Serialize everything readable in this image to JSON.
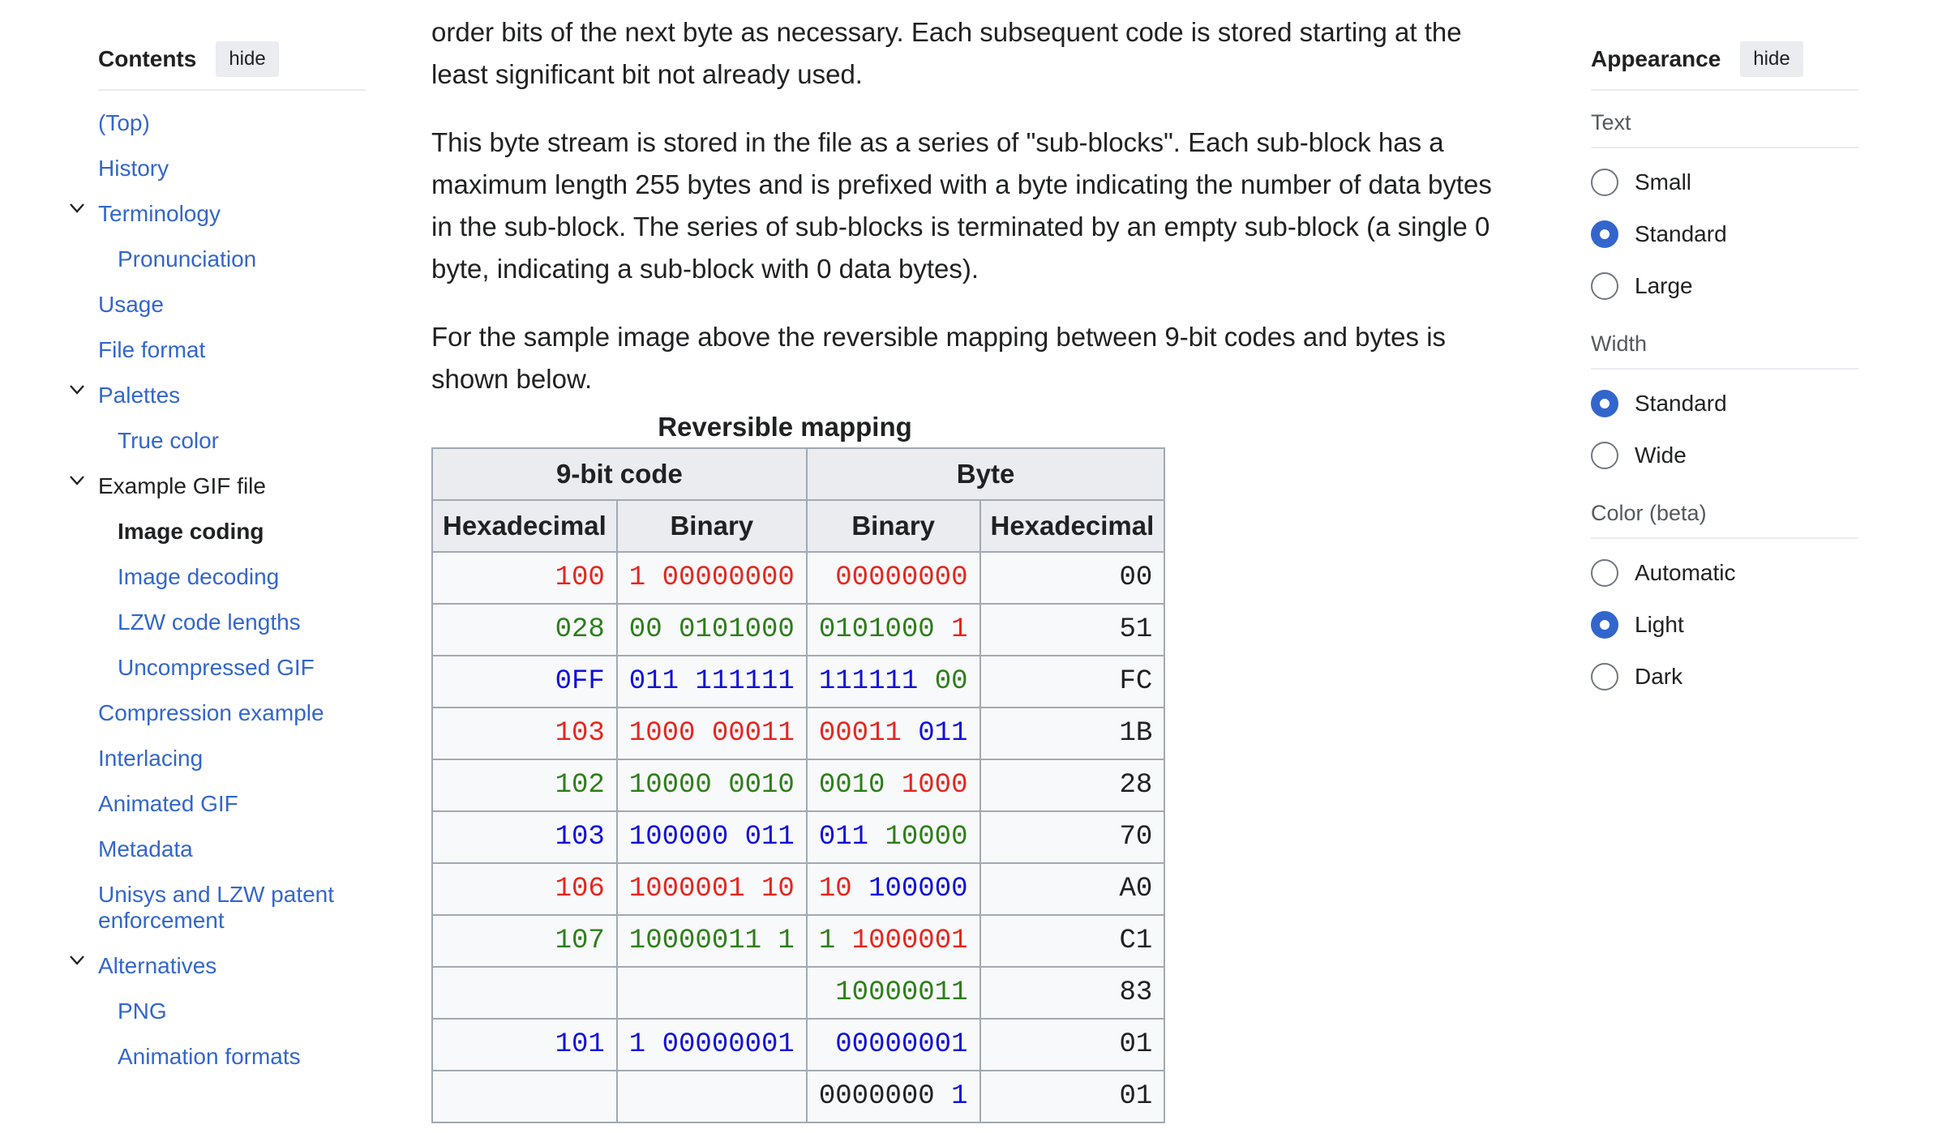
{
  "toc": {
    "title": "Contents",
    "hide_label": "hide",
    "items": [
      {
        "label": "(Top)",
        "level": 1,
        "state": "link"
      },
      {
        "label": "History",
        "level": 1,
        "state": "link"
      },
      {
        "label": "Terminology",
        "level": 1,
        "state": "link",
        "expanded": true
      },
      {
        "label": "Pronunciation",
        "level": 2,
        "state": "link"
      },
      {
        "label": "Usage",
        "level": 1,
        "state": "link"
      },
      {
        "label": "File format",
        "level": 1,
        "state": "link"
      },
      {
        "label": "Palettes",
        "level": 1,
        "state": "link",
        "expanded": true
      },
      {
        "label": "True color",
        "level": 2,
        "state": "link"
      },
      {
        "label": "Example GIF file",
        "level": 1,
        "state": "plain",
        "expanded": true
      },
      {
        "label": "Image coding",
        "level": 2,
        "state": "current"
      },
      {
        "label": "Image decoding",
        "level": 2,
        "state": "link"
      },
      {
        "label": "LZW code lengths",
        "level": 2,
        "state": "link"
      },
      {
        "label": "Uncompressed GIF",
        "level": 2,
        "state": "link"
      },
      {
        "label": "Compression example",
        "level": 1,
        "state": "link"
      },
      {
        "label": "Interlacing",
        "level": 1,
        "state": "link"
      },
      {
        "label": "Animated GIF",
        "level": 1,
        "state": "link"
      },
      {
        "label": "Metadata",
        "level": 1,
        "state": "link"
      },
      {
        "label": "Unisys and LZW patent enforcement",
        "level": 1,
        "state": "link"
      },
      {
        "label": "Alternatives",
        "level": 1,
        "state": "link",
        "expanded": true
      },
      {
        "label": "PNG",
        "level": 2,
        "state": "link"
      },
      {
        "label": "Animation formats",
        "level": 2,
        "state": "link"
      }
    ]
  },
  "main": {
    "para1": "order bits of the next byte as necessary. Each subsequent code is stored starting at the least significant bit not already used.",
    "para2": "This byte stream is stored in the file as a series of \"sub-blocks\". Each sub-block has a maximum length 255 bytes and is prefixed with a byte indicating the number of data bytes in the sub-block. The series of sub-blocks is terminated by an empty sub-block (a single 0 byte, indicating a sub-block with 0 data bytes).",
    "para3": "For the sample image above the reversible mapping between 9-bit codes and bytes is shown below.",
    "table": {
      "caption": "Reversible mapping",
      "group_headers": [
        "9-bit code",
        "Byte"
      ],
      "column_headers": [
        "Hexadecimal",
        "Binary",
        "Binary",
        "Hexadecimal"
      ],
      "rows": [
        [
          [
            {
              "t": "100",
              "c": "red"
            }
          ],
          [
            {
              "t": "1 00000000",
              "c": "red"
            }
          ],
          [
            {
              "t": "00000000",
              "c": "red"
            }
          ],
          [
            {
              "t": "00",
              "c": "black"
            }
          ]
        ],
        [
          [
            {
              "t": "028",
              "c": "green"
            }
          ],
          [
            {
              "t": "00 0101000",
              "c": "green"
            }
          ],
          [
            {
              "t": "0101000 ",
              "c": "green"
            },
            {
              "t": "1",
              "c": "red"
            }
          ],
          [
            {
              "t": "51",
              "c": "black"
            }
          ]
        ],
        [
          [
            {
              "t": "0FF",
              "c": "blue"
            }
          ],
          [
            {
              "t": "011 111111",
              "c": "blue"
            }
          ],
          [
            {
              "t": "111111 ",
              "c": "blue"
            },
            {
              "t": "00",
              "c": "green"
            }
          ],
          [
            {
              "t": "FC",
              "c": "black"
            }
          ]
        ],
        [
          [
            {
              "t": "103",
              "c": "red"
            }
          ],
          [
            {
              "t": "1000 00011",
              "c": "red"
            }
          ],
          [
            {
              "t": "00011 ",
              "c": "red"
            },
            {
              "t": "011",
              "c": "blue"
            }
          ],
          [
            {
              "t": "1B",
              "c": "black"
            }
          ]
        ],
        [
          [
            {
              "t": "102",
              "c": "green"
            }
          ],
          [
            {
              "t": "10000 0010",
              "c": "green"
            }
          ],
          [
            {
              "t": "0010 ",
              "c": "green"
            },
            {
              "t": "1000",
              "c": "red"
            }
          ],
          [
            {
              "t": "28",
              "c": "black"
            }
          ]
        ],
        [
          [
            {
              "t": "103",
              "c": "blue"
            }
          ],
          [
            {
              "t": "100000 011",
              "c": "blue"
            }
          ],
          [
            {
              "t": "011 ",
              "c": "blue"
            },
            {
              "t": "10000",
              "c": "green"
            }
          ],
          [
            {
              "t": "70",
              "c": "black"
            }
          ]
        ],
        [
          [
            {
              "t": "106",
              "c": "red"
            }
          ],
          [
            {
              "t": "1000001 10",
              "c": "red"
            }
          ],
          [
            {
              "t": "10 ",
              "c": "red"
            },
            {
              "t": "100000",
              "c": "blue"
            }
          ],
          [
            {
              "t": "A0",
              "c": "black"
            }
          ]
        ],
        [
          [
            {
              "t": "107",
              "c": "green"
            }
          ],
          [
            {
              "t": "10000011 1",
              "c": "green"
            }
          ],
          [
            {
              "t": "1 ",
              "c": "green"
            },
            {
              "t": "1000001",
              "c": "red"
            }
          ],
          [
            {
              "t": "C1",
              "c": "black"
            }
          ]
        ],
        [
          [],
          [],
          [
            {
              "t": "10000011",
              "c": "green"
            }
          ],
          [
            {
              "t": "83",
              "c": "black"
            }
          ]
        ],
        [
          [
            {
              "t": "101",
              "c": "blue"
            }
          ],
          [
            {
              "t": "1 00000001",
              "c": "blue"
            }
          ],
          [
            {
              "t": "00000001",
              "c": "blue"
            }
          ],
          [
            {
              "t": "01",
              "c": "black"
            }
          ]
        ],
        [
          [],
          [],
          [
            {
              "t": "0000000 ",
              "c": "black"
            },
            {
              "t": "1",
              "c": "blue"
            }
          ],
          [
            {
              "t": "01",
              "c": "black"
            }
          ]
        ]
      ]
    }
  },
  "appearance": {
    "title": "Appearance",
    "hide_label": "hide",
    "sections": [
      {
        "label": "Text",
        "options": [
          {
            "label": "Small",
            "checked": false
          },
          {
            "label": "Standard",
            "checked": true
          },
          {
            "label": "Large",
            "checked": false
          }
        ]
      },
      {
        "label": "Width",
        "options": [
          {
            "label": "Standard",
            "checked": true
          },
          {
            "label": "Wide",
            "checked": false
          }
        ]
      },
      {
        "label": "Color (beta)",
        "options": [
          {
            "label": "Automatic",
            "checked": false
          },
          {
            "label": "Light",
            "checked": true
          },
          {
            "label": "Dark",
            "checked": false
          }
        ]
      }
    ]
  },
  "colors": {
    "red": "#e5261f",
    "green": "#2e7d1b",
    "blue": "#1010d8",
    "black": "#202122",
    "link": "#3366cc"
  }
}
